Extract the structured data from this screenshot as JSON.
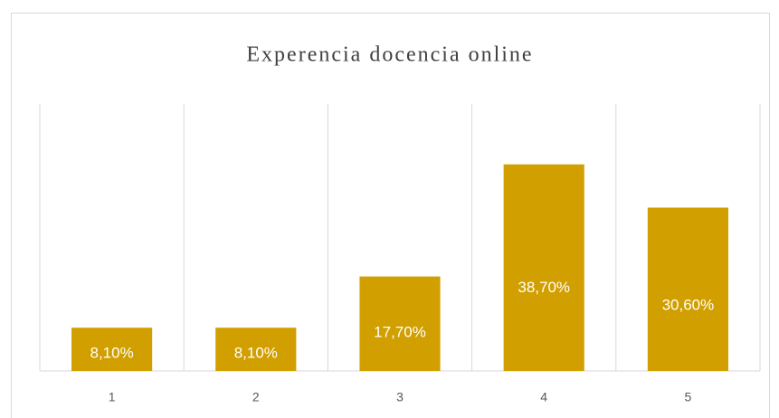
{
  "chart_data": {
    "type": "bar",
    "title": "Experencia docencia online",
    "categories": [
      "1",
      "2",
      "3",
      "4",
      "5"
    ],
    "values": [
      8.1,
      8.1,
      17.7,
      38.7,
      30.6
    ],
    "value_labels": [
      "8,10%",
      "8,10%",
      "17,70%",
      "38,70%",
      "30,60%"
    ],
    "color": "#d19f00",
    "ylim": [
      0,
      50
    ]
  }
}
